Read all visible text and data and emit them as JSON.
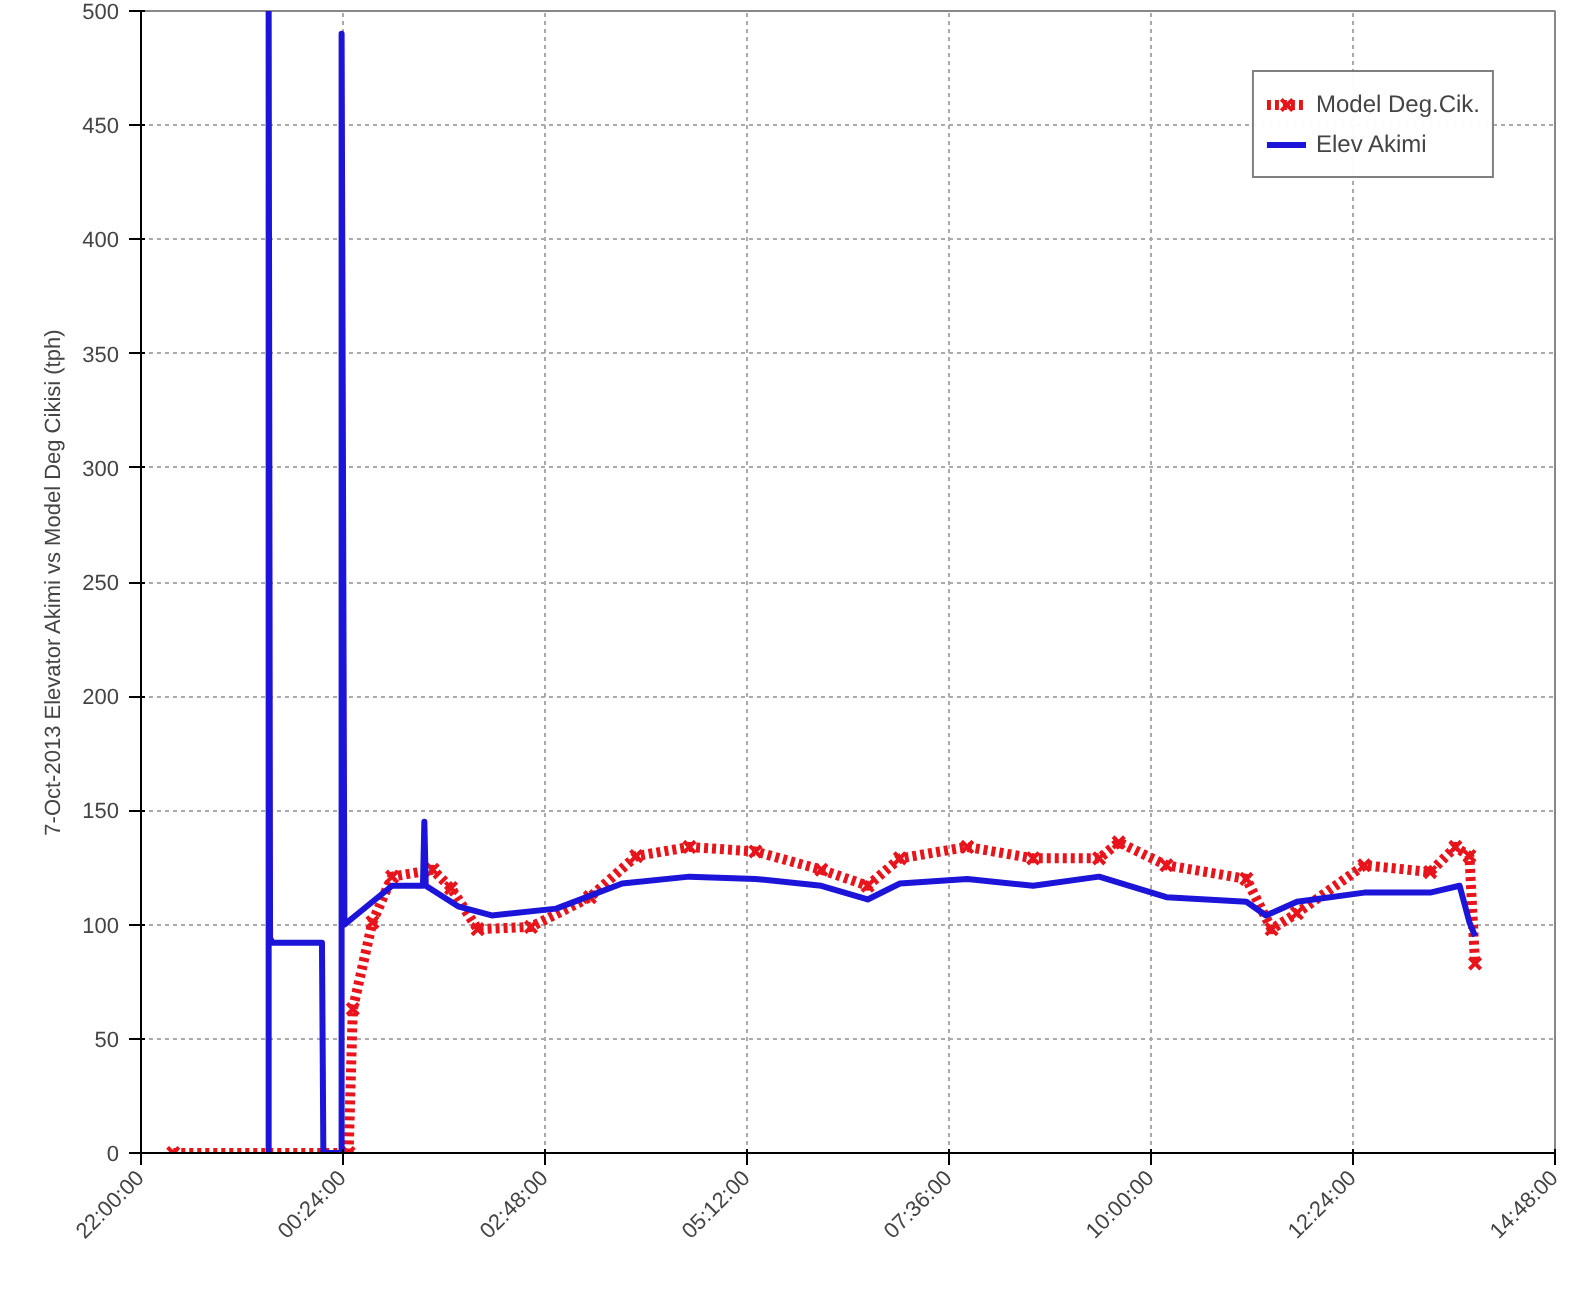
{
  "chart_data": {
    "type": "line",
    "ylabel": "7-Oct-2013 Elevator Akimi vs Model Deg Cikisi (tph)",
    "xlim": [
      "2013-10-06T22:00",
      "2013-10-07T14:48"
    ],
    "xticks": [
      {
        "value": "2013-10-06T22:00",
        "label": "22:00:00"
      },
      {
        "value": "2013-10-07T00:24",
        "label": "00:24:00"
      },
      {
        "value": "2013-10-07T02:48",
        "label": "02:48:00"
      },
      {
        "value": "2013-10-07T05:12",
        "label": "05:12:00"
      },
      {
        "value": "2013-10-07T07:36",
        "label": "07:36:00"
      },
      {
        "value": "2013-10-07T10:00",
        "label": "10:00:00"
      },
      {
        "value": "2013-10-07T12:24",
        "label": "12:24:00"
      },
      {
        "value": "2013-10-07T14:48",
        "label": "14:48:00"
      }
    ],
    "ylim": [
      0,
      500
    ],
    "yticks": [
      0,
      50,
      100,
      150,
      200,
      250,
      300,
      350,
      400,
      450,
      500
    ],
    "grid": true,
    "legend": "top right",
    "series": [
      {
        "name": "Model Deg.Cik.",
        "color": "#e8141c",
        "marker": "cross",
        "line_style": "dotted",
        "x": [
          "2013-10-06T22:23",
          "2013-10-07T00:28",
          "2013-10-07T00:31",
          "2013-10-07T00:45",
          "2013-10-07T00:59",
          "2013-10-07T01:28",
          "2013-10-07T01:41",
          "2013-10-07T02:00",
          "2013-10-07T02:38",
          "2013-10-07T03:20",
          "2013-10-07T03:53",
          "2013-10-07T04:31",
          "2013-10-07T05:18",
          "2013-10-07T06:05",
          "2013-10-07T06:38",
          "2013-10-07T07:01",
          "2013-10-07T07:49",
          "2013-10-07T08:36",
          "2013-10-07T09:23",
          "2013-10-07T09:37",
          "2013-10-07T10:11",
          "2013-10-07T11:08",
          "2013-10-07T11:26",
          "2013-10-07T11:44",
          "2013-10-07T12:32",
          "2013-10-07T13:19",
          "2013-10-07T13:37",
          "2013-10-07T13:47",
          "2013-10-07T13:51"
        ],
        "values": [
          0,
          0,
          63,
          101,
          121,
          124,
          116,
          98,
          99,
          112,
          130,
          134,
          132,
          124,
          117,
          129,
          134,
          129,
          129,
          136,
          126,
          120,
          98,
          105,
          126,
          123,
          134,
          130,
          83
        ]
      },
      {
        "name": "Elev Akimi",
        "color": "#1c14d8",
        "line_style": "solid",
        "x": [
          "2013-10-06T23:31",
          "2013-10-06T23:31",
          "2013-10-06T23:32",
          "2013-10-06T23:34",
          "2013-10-07T00:09",
          "2013-10-07T00:10",
          "2013-10-07T00:23",
          "2013-10-07T00:23",
          "2013-10-07T00:25",
          "2013-10-07T00:31",
          "2013-10-07T00:59",
          "2013-10-07T01:21",
          "2013-10-07T01:22",
          "2013-10-07T01:23",
          "2013-10-07T01:46",
          "2013-10-07T02:10",
          "2013-10-07T02:56",
          "2013-10-07T03:43",
          "2013-10-07T04:31",
          "2013-10-07T05:18",
          "2013-10-07T06:05",
          "2013-10-07T06:38",
          "2013-10-07T07:01",
          "2013-10-07T07:49",
          "2013-10-07T08:36",
          "2013-10-07T09:23",
          "2013-10-07T10:11",
          "2013-10-07T11:08",
          "2013-10-07T11:22",
          "2013-10-07T11:44",
          "2013-10-07T12:32",
          "2013-10-07T13:19",
          "2013-10-07T13:40",
          "2013-10-07T13:47",
          "2013-10-07T13:51"
        ],
        "values": [
          0,
          500,
          94,
          92,
          92,
          0,
          0,
          490,
          100,
          103,
          117,
          117,
          145,
          117,
          108,
          104,
          107,
          118,
          121,
          120,
          117,
          111,
          118,
          120,
          117,
          121,
          112,
          110,
          104,
          110,
          114,
          114,
          117,
          101,
          95
        ]
      }
    ]
  }
}
